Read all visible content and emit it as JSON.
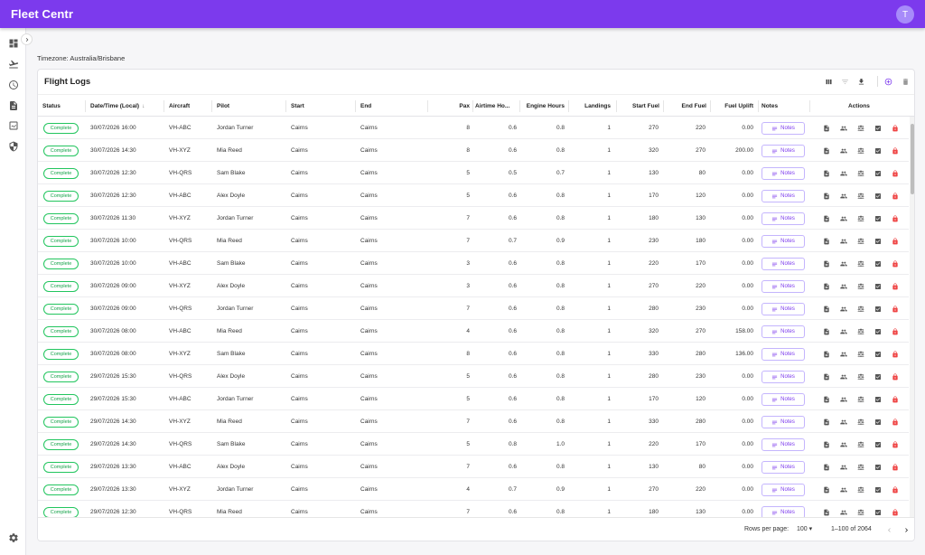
{
  "app": {
    "title": "Fleet Centr",
    "avatar_initial": "T"
  },
  "timezone": "Timezone: Australia/Brisbane",
  "card": {
    "title": "Flight Logs"
  },
  "columns": [
    "Status",
    "Date/Time (Local)",
    "Aircraft",
    "Pilot",
    "Start",
    "End",
    "Pax",
    "Airtime Ho...",
    "Engine Hours",
    "Landings",
    "Start Fuel",
    "End Fuel",
    "Fuel Uplift",
    "Notes",
    "Actions"
  ],
  "notes_label": "Notes",
  "rows": [
    {
      "status": "Complete",
      "datetime": "30/07/2026 16:00",
      "aircraft": "VH-ABC",
      "pilot": "Jordan Turner",
      "start": "Cairns",
      "end": "Cairns",
      "pax": "8",
      "airtime": "0.6",
      "engine": "0.8",
      "landings": "1",
      "start_fuel": "270",
      "end_fuel": "220",
      "uplift": "0.00"
    },
    {
      "status": "Complete",
      "datetime": "30/07/2026 14:30",
      "aircraft": "VH-XYZ",
      "pilot": "Mia Reed",
      "start": "Cairns",
      "end": "Cairns",
      "pax": "8",
      "airtime": "0.6",
      "engine": "0.8",
      "landings": "1",
      "start_fuel": "320",
      "end_fuel": "270",
      "uplift": "200.00"
    },
    {
      "status": "Complete",
      "datetime": "30/07/2026 12:30",
      "aircraft": "VH-QRS",
      "pilot": "Sam Blake",
      "start": "Cairns",
      "end": "Cairns",
      "pax": "5",
      "airtime": "0.5",
      "engine": "0.7",
      "landings": "1",
      "start_fuel": "130",
      "end_fuel": "80",
      "uplift": "0.00"
    },
    {
      "status": "Complete",
      "datetime": "30/07/2026 12:30",
      "aircraft": "VH-ABC",
      "pilot": "Alex Doyle",
      "start": "Cairns",
      "end": "Cairns",
      "pax": "5",
      "airtime": "0.6",
      "engine": "0.8",
      "landings": "1",
      "start_fuel": "170",
      "end_fuel": "120",
      "uplift": "0.00"
    },
    {
      "status": "Complete",
      "datetime": "30/07/2026 11:30",
      "aircraft": "VH-XYZ",
      "pilot": "Jordan Turner",
      "start": "Cairns",
      "end": "Cairns",
      "pax": "7",
      "airtime": "0.6",
      "engine": "0.8",
      "landings": "1",
      "start_fuel": "180",
      "end_fuel": "130",
      "uplift": "0.00"
    },
    {
      "status": "Complete",
      "datetime": "30/07/2026 10:00",
      "aircraft": "VH-QRS",
      "pilot": "Mia Reed",
      "start": "Cairns",
      "end": "Cairns",
      "pax": "7",
      "airtime": "0.7",
      "engine": "0.9",
      "landings": "1",
      "start_fuel": "230",
      "end_fuel": "180",
      "uplift": "0.00"
    },
    {
      "status": "Complete",
      "datetime": "30/07/2026 10:00",
      "aircraft": "VH-ABC",
      "pilot": "Sam Blake",
      "start": "Cairns",
      "end": "Cairns",
      "pax": "3",
      "airtime": "0.6",
      "engine": "0.8",
      "landings": "1",
      "start_fuel": "220",
      "end_fuel": "170",
      "uplift": "0.00"
    },
    {
      "status": "Complete",
      "datetime": "30/07/2026 09:00",
      "aircraft": "VH-XYZ",
      "pilot": "Alex Doyle",
      "start": "Cairns",
      "end": "Cairns",
      "pax": "3",
      "airtime": "0.6",
      "engine": "0.8",
      "landings": "1",
      "start_fuel": "270",
      "end_fuel": "220",
      "uplift": "0.00"
    },
    {
      "status": "Complete",
      "datetime": "30/07/2026 09:00",
      "aircraft": "VH-QRS",
      "pilot": "Jordan Turner",
      "start": "Cairns",
      "end": "Cairns",
      "pax": "7",
      "airtime": "0.6",
      "engine": "0.8",
      "landings": "1",
      "start_fuel": "280",
      "end_fuel": "230",
      "uplift": "0.00"
    },
    {
      "status": "Complete",
      "datetime": "30/07/2026 08:00",
      "aircraft": "VH-ABC",
      "pilot": "Mia Reed",
      "start": "Cairns",
      "end": "Cairns",
      "pax": "4",
      "airtime": "0.6",
      "engine": "0.8",
      "landings": "1",
      "start_fuel": "320",
      "end_fuel": "270",
      "uplift": "158.00"
    },
    {
      "status": "Complete",
      "datetime": "30/07/2026 08:00",
      "aircraft": "VH-XYZ",
      "pilot": "Sam Blake",
      "start": "Cairns",
      "end": "Cairns",
      "pax": "8",
      "airtime": "0.6",
      "engine": "0.8",
      "landings": "1",
      "start_fuel": "330",
      "end_fuel": "280",
      "uplift": "136.00"
    },
    {
      "status": "Complete",
      "datetime": "29/07/2026 15:30",
      "aircraft": "VH-QRS",
      "pilot": "Alex Doyle",
      "start": "Cairns",
      "end": "Cairns",
      "pax": "5",
      "airtime": "0.6",
      "engine": "0.8",
      "landings": "1",
      "start_fuel": "280",
      "end_fuel": "230",
      "uplift": "0.00"
    },
    {
      "status": "Complete",
      "datetime": "29/07/2026 15:30",
      "aircraft": "VH-ABC",
      "pilot": "Jordan Turner",
      "start": "Cairns",
      "end": "Cairns",
      "pax": "5",
      "airtime": "0.6",
      "engine": "0.8",
      "landings": "1",
      "start_fuel": "170",
      "end_fuel": "120",
      "uplift": "0.00"
    },
    {
      "status": "Complete",
      "datetime": "29/07/2026 14:30",
      "aircraft": "VH-XYZ",
      "pilot": "Mia Reed",
      "start": "Cairns",
      "end": "Cairns",
      "pax": "7",
      "airtime": "0.6",
      "engine": "0.8",
      "landings": "1",
      "start_fuel": "330",
      "end_fuel": "280",
      "uplift": "0.00"
    },
    {
      "status": "Complete",
      "datetime": "29/07/2026 14:30",
      "aircraft": "VH-QRS",
      "pilot": "Sam Blake",
      "start": "Cairns",
      "end": "Cairns",
      "pax": "5",
      "airtime": "0.8",
      "engine": "1.0",
      "landings": "1",
      "start_fuel": "220",
      "end_fuel": "170",
      "uplift": "0.00"
    },
    {
      "status": "Complete",
      "datetime": "29/07/2026 13:30",
      "aircraft": "VH-ABC",
      "pilot": "Alex Doyle",
      "start": "Cairns",
      "end": "Cairns",
      "pax": "7",
      "airtime": "0.6",
      "engine": "0.8",
      "landings": "1",
      "start_fuel": "130",
      "end_fuel": "80",
      "uplift": "0.00"
    },
    {
      "status": "Complete",
      "datetime": "29/07/2026 13:30",
      "aircraft": "VH-XYZ",
      "pilot": "Jordan Turner",
      "start": "Cairns",
      "end": "Cairns",
      "pax": "4",
      "airtime": "0.7",
      "engine": "0.9",
      "landings": "1",
      "start_fuel": "270",
      "end_fuel": "220",
      "uplift": "0.00"
    },
    {
      "status": "Complete",
      "datetime": "29/07/2026 12:30",
      "aircraft": "VH-QRS",
      "pilot": "Mia Reed",
      "start": "Cairns",
      "end": "Cairns",
      "pax": "7",
      "airtime": "0.6",
      "engine": "0.8",
      "landings": "1",
      "start_fuel": "180",
      "end_fuel": "130",
      "uplift": "0.00"
    }
  ],
  "pagination": {
    "rows_per_page_label": "Rows per page:",
    "rows_per_page": "100",
    "range": "1–100 of 2064"
  },
  "colors": {
    "accent": "#7c3aed",
    "complete": "#16a34a",
    "delete": "#ef4444"
  },
  "icons": {
    "sidebar": [
      "dashboard-icon",
      "flight-icon",
      "history-icon",
      "document-icon",
      "chart-icon",
      "shield-icon",
      "settings-icon"
    ],
    "toolbar": [
      "columns-icon",
      "filter-icon",
      "download-icon",
      "add-circle-icon",
      "delete-icon"
    ],
    "row_actions": [
      "document-icon",
      "crew-icon",
      "balance-icon",
      "checkbox-icon",
      "lock-icon"
    ]
  }
}
